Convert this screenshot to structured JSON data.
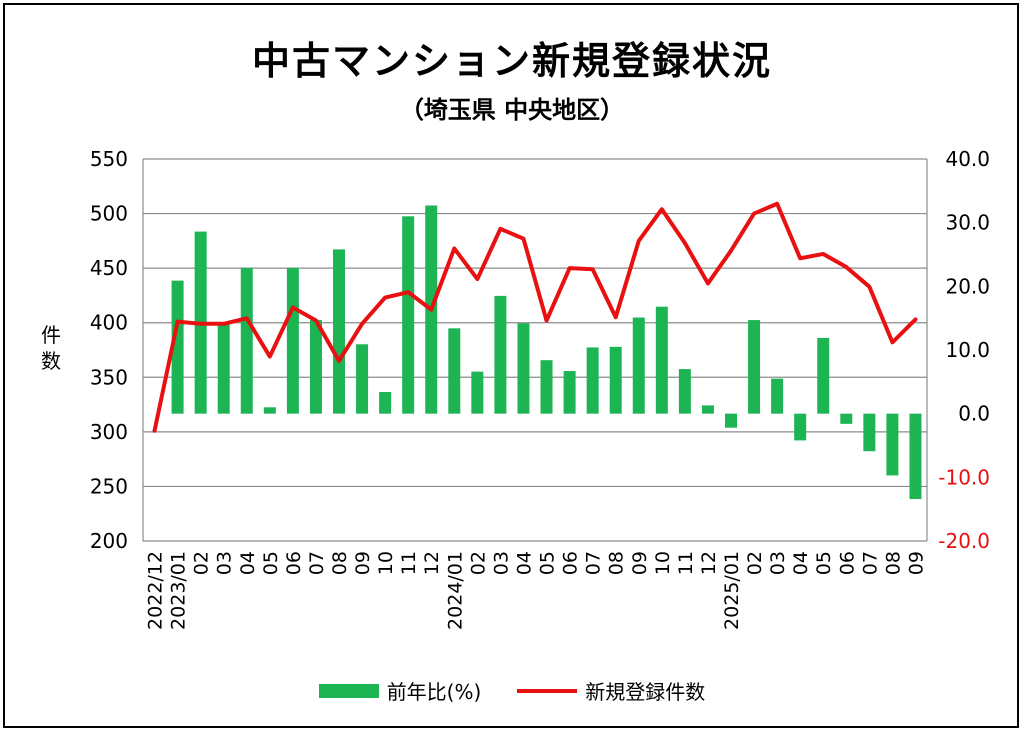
{
  "chart_data": {
    "type": "bar+line",
    "title": "中古マンション新規登録状況",
    "subtitle": "（埼玉県 中央地区）",
    "ylabel_left": "件数",
    "ylim_left": [
      200,
      550
    ],
    "yticks_left": [
      "550",
      "500",
      "450",
      "400",
      "350",
      "300",
      "250",
      "200"
    ],
    "ylim_right": [
      -20,
      40
    ],
    "yticks_right": [
      "40.0",
      "30.0",
      "20.0",
      "10.0",
      "0.0",
      "-10.0",
      "-20.0"
    ],
    "categories": [
      "2022/12",
      "2023/01",
      "02",
      "03",
      "04",
      "05",
      "06",
      "07",
      "08",
      "09",
      "10",
      "11",
      "12",
      "2024/01",
      "02",
      "03",
      "04",
      "05",
      "06",
      "07",
      "08",
      "09",
      "10",
      "11",
      "12",
      "2025/01",
      "02",
      "03",
      "04",
      "05",
      "06",
      "07",
      "08",
      "09"
    ],
    "series": [
      {
        "name": "前年比(%)",
        "type": "bar",
        "axis": "right",
        "color": "#1db454",
        "values": [
          null,
          20.9,
          28.6,
          14.2,
          22.9,
          1.0,
          22.9,
          14.7,
          25.8,
          10.9,
          3.4,
          31.0,
          32.7,
          13.4,
          6.6,
          18.5,
          14.2,
          8.4,
          6.7,
          10.4,
          10.5,
          15.1,
          16.8,
          7.0,
          1.3,
          -2.2,
          14.7,
          5.5,
          -4.2,
          11.9,
          -1.6,
          -5.9,
          -9.7,
          -13.4
        ]
      },
      {
        "name": "新規登録件数",
        "type": "line",
        "axis": "left",
        "color": "#e81010",
        "values": [
          301,
          401,
          399,
          399,
          404,
          369,
          414,
          402,
          365,
          399,
          423,
          428,
          412,
          468,
          440,
          486,
          477,
          402,
          450,
          449,
          405,
          475,
          504,
          473,
          436,
          466,
          500,
          509,
          459,
          463,
          451,
          433,
          382,
          403
        ]
      }
    ],
    "legend": [
      "前年比(%)",
      "新規登録件数"
    ],
    "legend_position": "bottom"
  }
}
